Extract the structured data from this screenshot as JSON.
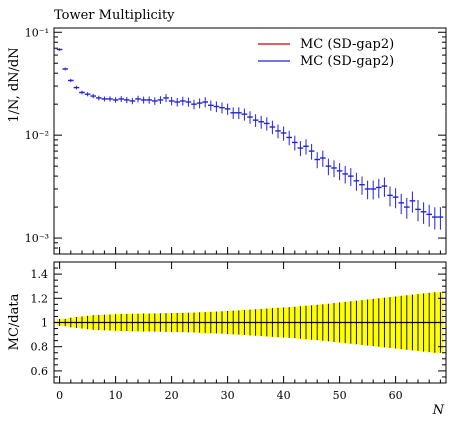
{
  "chart_data": {
    "type": "scatter",
    "title": "Tower Multiplicity",
    "xlabel": "N",
    "ylabel_main": "1/N, dN/dN",
    "ylabel_ratio": "MC/data",
    "x_ticks": [
      "0",
      "10",
      "20",
      "30",
      "40",
      "50",
      "60"
    ],
    "x_tick_values": [
      0,
      10,
      20,
      30,
      40,
      50,
      60
    ],
    "xlim": [
      -1,
      69
    ],
    "main_ylim": [
      0.0007,
      0.11
    ],
    "main_yscale": "log",
    "main_y_ticks": [
      "10⁻³",
      "10⁻²",
      "10⁻¹"
    ],
    "main_y_tick_values": [
      0.001,
      0.01,
      0.1
    ],
    "ratio_ylim": [
      0.5,
      1.5
    ],
    "ratio_y_ticks": [
      "0.6",
      "0.8",
      "1",
      "1.2",
      "1.4"
    ],
    "ratio_y_tick_values": [
      0.6,
      0.8,
      1.0,
      1.2,
      1.4
    ],
    "legend_position": "top-right",
    "colors": {
      "series_a": "#cc0000",
      "series_b": "#2222dd",
      "band": "#ffff00",
      "axis": "#000000"
    },
    "series": [
      {
        "name": "MC (SD-gap2)",
        "color": "#cc0000"
      },
      {
        "name": "MC (SD-gap2)",
        "color": "#2222dd"
      }
    ],
    "x": [
      0,
      1,
      2,
      3,
      4,
      5,
      6,
      7,
      8,
      9,
      10,
      11,
      12,
      13,
      14,
      15,
      16,
      17,
      18,
      19,
      20,
      21,
      22,
      23,
      24,
      25,
      26,
      27,
      28,
      29,
      30,
      31,
      32,
      33,
      34,
      35,
      36,
      37,
      38,
      39,
      40,
      41,
      42,
      43,
      44,
      45,
      46,
      47,
      48,
      49,
      50,
      51,
      52,
      53,
      54,
      55,
      56,
      57,
      58,
      59,
      60,
      61,
      62,
      63,
      64,
      65,
      66,
      67,
      68
    ],
    "values": [
      0.068,
      0.044,
      0.034,
      0.029,
      0.026,
      0.025,
      0.024,
      0.023,
      0.0225,
      0.0225,
      0.022,
      0.0225,
      0.022,
      0.0215,
      0.0225,
      0.022,
      0.022,
      0.0215,
      0.022,
      0.023,
      0.0215,
      0.021,
      0.0215,
      0.021,
      0.02,
      0.0205,
      0.021,
      0.0195,
      0.019,
      0.0185,
      0.018,
      0.0165,
      0.0165,
      0.016,
      0.015,
      0.014,
      0.0135,
      0.013,
      0.012,
      0.011,
      0.0105,
      0.0095,
      0.0085,
      0.0075,
      0.0078,
      0.007,
      0.0058,
      0.006,
      0.005,
      0.0048,
      0.0045,
      0.0042,
      0.004,
      0.0036,
      0.0033,
      0.003,
      0.003,
      0.0031,
      0.0032,
      0.0026,
      0.0025,
      0.0022,
      0.002,
      0.0023,
      0.0019,
      0.0018,
      0.0017,
      0.0016,
      0.0016
    ],
    "ratio_band_halfwidth": [
      0.03,
      0.03,
      0.04,
      0.045,
      0.05,
      0.055,
      0.06,
      0.062,
      0.064,
      0.066,
      0.068,
      0.07,
      0.07,
      0.072,
      0.072,
      0.074,
      0.074,
      0.075,
      0.076,
      0.077,
      0.078,
      0.079,
      0.08,
      0.081,
      0.082,
      0.084,
      0.086,
      0.088,
      0.09,
      0.092,
      0.095,
      0.098,
      0.1,
      0.103,
      0.106,
      0.109,
      0.112,
      0.115,
      0.118,
      0.121,
      0.124,
      0.127,
      0.13,
      0.134,
      0.138,
      0.142,
      0.146,
      0.15,
      0.155,
      0.16,
      0.165,
      0.17,
      0.175,
      0.18,
      0.185,
      0.19,
      0.195,
      0.2,
      0.205,
      0.21,
      0.215,
      0.22,
      0.225,
      0.23,
      0.235,
      0.24,
      0.245,
      0.25,
      0.25
    ]
  }
}
